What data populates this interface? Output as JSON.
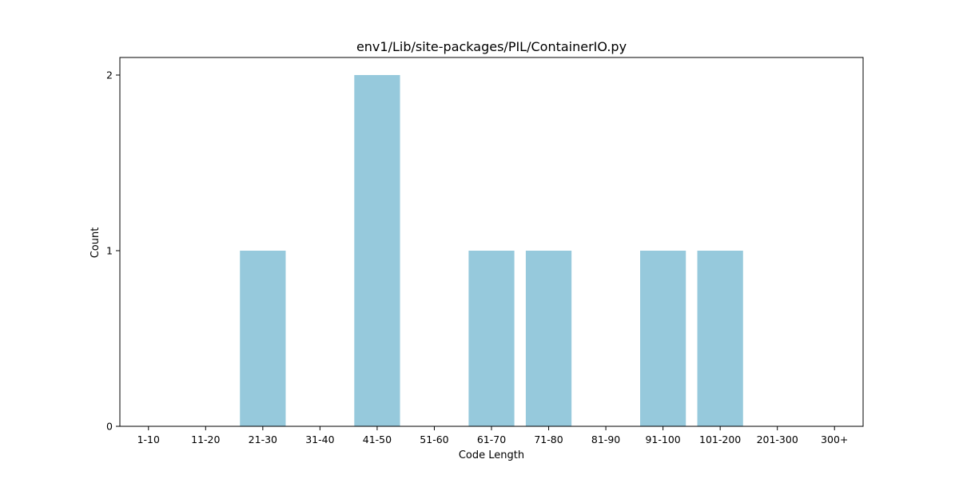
{
  "chart_data": {
    "type": "bar",
    "title": "env1/Lib/site-packages/PIL/ContainerIO.py",
    "xlabel": "Code Length",
    "ylabel": "Count",
    "categories": [
      "1-10",
      "11-20",
      "21-30",
      "31-40",
      "41-50",
      "51-60",
      "61-70",
      "71-80",
      "81-90",
      "91-100",
      "101-200",
      "201-300",
      "300+"
    ],
    "values": [
      0,
      0,
      1,
      0,
      2,
      0,
      1,
      1,
      0,
      1,
      1,
      0,
      0
    ],
    "yticks": [
      0,
      1,
      2
    ],
    "ylim": [
      0,
      2.1
    ],
    "bar_color": "#96c9dc",
    "grid": false
  }
}
